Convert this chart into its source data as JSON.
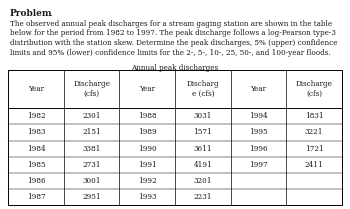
{
  "title_bold": "Problem",
  "title_suffix": " .",
  "body_lines": [
    "The observed annual peak discharges for a stream gaging station are shown in the table",
    "below for the period from 1982 to 1997. The peak discharge follows a log-Pearson type-3",
    "distribution with the station skew. Determine the peak discharges, 5% (upper) confidence",
    "limits and 95% (lower) confidence limits for the 2-, 5-, 10-, 25, 50-, and 100-year floods."
  ],
  "table_title": "Annual peak discharges",
  "col_headers": [
    "Year",
    "Discharge\n(cfs)",
    "Year",
    "Discharg\ne (cfs)",
    "Year",
    "Discharge\n(cfs)"
  ],
  "col1_years": [
    "1982",
    "1983",
    "1984",
    "1985",
    "1986",
    "1987"
  ],
  "col1_discharges": [
    "2301",
    "2151",
    "3381",
    "2731",
    "3001",
    "2951"
  ],
  "col2_years": [
    "1988",
    "1989",
    "1990",
    "1991",
    "1992",
    "1993"
  ],
  "col2_discharges": [
    "3031",
    "1571",
    "3611",
    "4191",
    "3201",
    "2231"
  ],
  "col3_years": [
    "1994",
    "1995",
    "1996",
    "1997"
  ],
  "col3_discharges": [
    "1831",
    "3221",
    "1721",
    "2411"
  ],
  "bg_color": "#ffffff",
  "text_color": "#1a1a1a",
  "font_size_title": 6.5,
  "font_size_body": 5.2,
  "font_size_table_hdr": 5.2,
  "font_size_table_data": 5.2
}
